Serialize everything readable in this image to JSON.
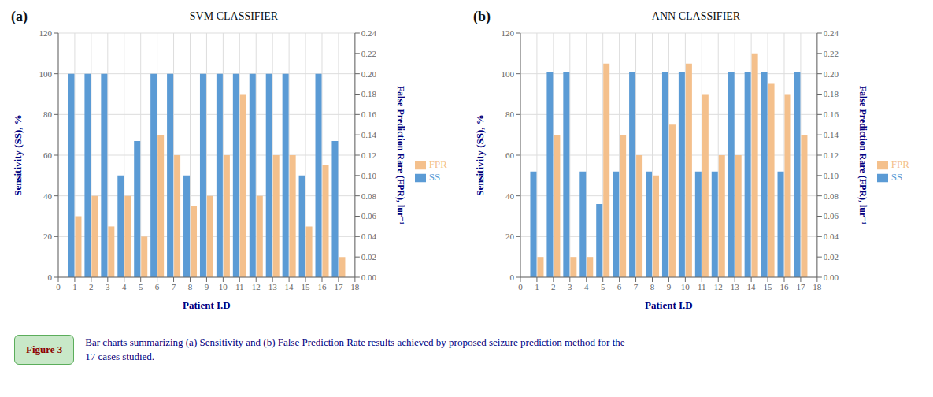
{
  "chart_data": [
    {
      "type": "bar",
      "title": "SVM CLASSIFIER",
      "annotations": [
        "(a)"
      ],
      "x": [
        1,
        2,
        3,
        4,
        5,
        6,
        7,
        8,
        9,
        10,
        11,
        12,
        13,
        14,
        15,
        16,
        17
      ],
      "xlim": [
        0,
        18
      ],
      "xticks": [
        0,
        1,
        2,
        3,
        4,
        5,
        6,
        7,
        8,
        9,
        10,
        11,
        12,
        13,
        14,
        15,
        16,
        17,
        18
      ],
      "xlabel": "Patient I.D",
      "ylabel": "Sensitivity (SS), %",
      "y2label": "False Prediction Rare (FPR), lur⁻¹",
      "ylim": [
        0,
        120
      ],
      "yticks": [
        0,
        20,
        40,
        60,
        80,
        100,
        120
      ],
      "y2lim": [
        0.0,
        0.24
      ],
      "y2ticks": [
        {
          "value": 0.0,
          "label": "0.00"
        },
        {
          "value": 0.02,
          "label": "0.02"
        },
        {
          "value": 0.04,
          "label": "0.04"
        },
        {
          "value": 0.06,
          "label": "0.06"
        },
        {
          "value": 0.08,
          "label": "0.08"
        },
        {
          "value": 0.1,
          "label": "0.10"
        },
        {
          "value": 0.12,
          "label": "0.12"
        },
        {
          "value": 0.14,
          "label": "0.14"
        },
        {
          "value": 0.16,
          "label": "0.16"
        },
        {
          "value": 0.18,
          "label": "0.18"
        },
        {
          "value": 0.2,
          "label": "0.20"
        },
        {
          "value": 0.22,
          "label": "0.22"
        },
        {
          "value": 0.24,
          "label": "0.24"
        }
      ],
      "grid": true,
      "legend": "right",
      "series": [
        {
          "name": "SS",
          "color": "#5B9BD5",
          "values": [
            100,
            100,
            100,
            50,
            67,
            100,
            100,
            50,
            100,
            100,
            100,
            100,
            100,
            100,
            50,
            100,
            67
          ]
        },
        {
          "name": "FPR",
          "color": "#F4C08C",
          "axis": "y2",
          "values": [
            0.06,
            0.08,
            0.05,
            0.08,
            0.04,
            0.14,
            0.12,
            0.07,
            0.08,
            0.12,
            0.18,
            0.08,
            0.12,
            0.12,
            0.05,
            0.11,
            0.02
          ]
        }
      ]
    },
    {
      "type": "bar",
      "title": "ANN CLASSIFIER",
      "annotations": [
        "(b)"
      ],
      "x": [
        1,
        2,
        3,
        4,
        5,
        6,
        7,
        8,
        9,
        10,
        11,
        12,
        13,
        14,
        15,
        16,
        17
      ],
      "xlim": [
        0,
        18
      ],
      "xticks": [
        0,
        1,
        2,
        3,
        4,
        5,
        6,
        7,
        8,
        9,
        10,
        11,
        12,
        13,
        14,
        15,
        16,
        17,
        18
      ],
      "xlabel": "Patient I.D",
      "ylabel": "Sensitivity (SS), %",
      "y2label": "False Prediction Rare (FPR), lur⁻¹",
      "ylim": [
        0,
        120
      ],
      "yticks": [
        0,
        20,
        40,
        60,
        80,
        100,
        120
      ],
      "y2lim": [
        0.0,
        0.24
      ],
      "y2ticks": [
        {
          "value": 0.0,
          "label": "0.00"
        },
        {
          "value": 0.02,
          "label": "0.02"
        },
        {
          "value": 0.04,
          "label": "0.04"
        },
        {
          "value": 0.06,
          "label": "0.06"
        },
        {
          "value": 0.08,
          "label": "0.08"
        },
        {
          "value": 0.1,
          "label": "0.10"
        },
        {
          "value": 0.12,
          "label": "0.12"
        },
        {
          "value": 0.14,
          "label": "0.14"
        },
        {
          "value": 0.16,
          "label": "0.16"
        },
        {
          "value": 0.18,
          "label": "0.18"
        },
        {
          "value": 0.2,
          "label": "0.20"
        },
        {
          "value": 0.22,
          "label": "0.22"
        },
        {
          "value": 0.24,
          "label": "0.24"
        }
      ],
      "grid": true,
      "legend": "right",
      "series": [
        {
          "name": "SS",
          "color": "#5B9BD5",
          "values": [
            52,
            101,
            101,
            52,
            36,
            52,
            101,
            52,
            101,
            101,
            52,
            52,
            101,
            101,
            101,
            52,
            101
          ]
        },
        {
          "name": "FPR",
          "color": "#F4C08C",
          "axis": "y2",
          "values": [
            0.02,
            0.14,
            0.02,
            0.02,
            0.21,
            0.14,
            0.12,
            0.1,
            0.15,
            0.21,
            0.18,
            0.12,
            0.12,
            0.22,
            0.19,
            0.18,
            0.14
          ]
        }
      ]
    }
  ],
  "annotations": [
    "Figure 3",
    "Bar charts summarizing (a) Sensitivity and (b) False Prediction Rate results achieved by proposed seizure prediction method for the\n17 cases studied."
  ]
}
